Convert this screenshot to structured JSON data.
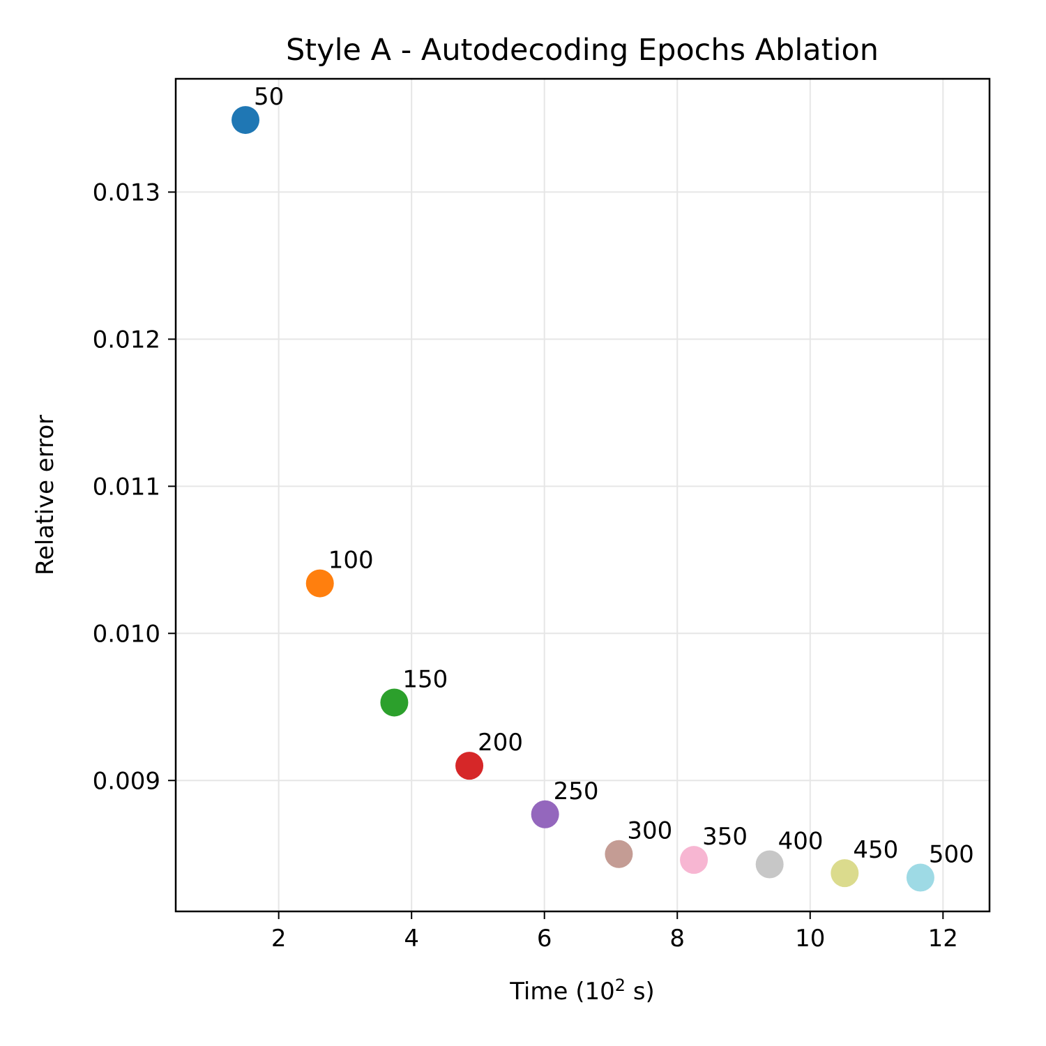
{
  "chart_data": {
    "type": "scatter",
    "title": "Style A - Autodecoding Epochs Ablation",
    "xlabel": "Time (10",
    "xlabel_sup": "2",
    "xlabel_suffix": " s)",
    "ylabel": "Relative error",
    "xlim": [
      0.45,
      12.7
    ],
    "ylim": [
      0.00811,
      0.01377
    ],
    "xticks": [
      2,
      4,
      6,
      8,
      10,
      12
    ],
    "xtick_labels": [
      "2",
      "4",
      "6",
      "8",
      "10",
      "12"
    ],
    "yticks": [
      0.009,
      0.01,
      0.011,
      0.012,
      0.013
    ],
    "ytick_labels": [
      "0.009",
      "0.010",
      "0.011",
      "0.012",
      "0.013"
    ],
    "grid": true,
    "points": [
      {
        "label": "50",
        "x": 1.5,
        "y": 0.01349,
        "color": "#1f77b4"
      },
      {
        "label": "100",
        "x": 2.62,
        "y": 0.01034,
        "color": "#ff7f0e"
      },
      {
        "label": "150",
        "x": 3.74,
        "y": 0.00953,
        "color": "#2ca02c"
      },
      {
        "label": "200",
        "x": 4.87,
        "y": 0.0091,
        "color": "#d62728"
      },
      {
        "label": "250",
        "x": 6.01,
        "y": 0.00877,
        "color": "#9467bd"
      },
      {
        "label": "300",
        "x": 7.12,
        "y": 0.0085,
        "color": "#c49c94"
      },
      {
        "label": "350",
        "x": 8.25,
        "y": 0.00846,
        "color": "#f7b6d2"
      },
      {
        "label": "400",
        "x": 9.39,
        "y": 0.00843,
        "color": "#c7c7c7"
      },
      {
        "label": "450",
        "x": 10.52,
        "y": 0.00837,
        "color": "#dbdb8d"
      },
      {
        "label": "500",
        "x": 11.66,
        "y": 0.00834,
        "color": "#9edae5"
      }
    ]
  }
}
